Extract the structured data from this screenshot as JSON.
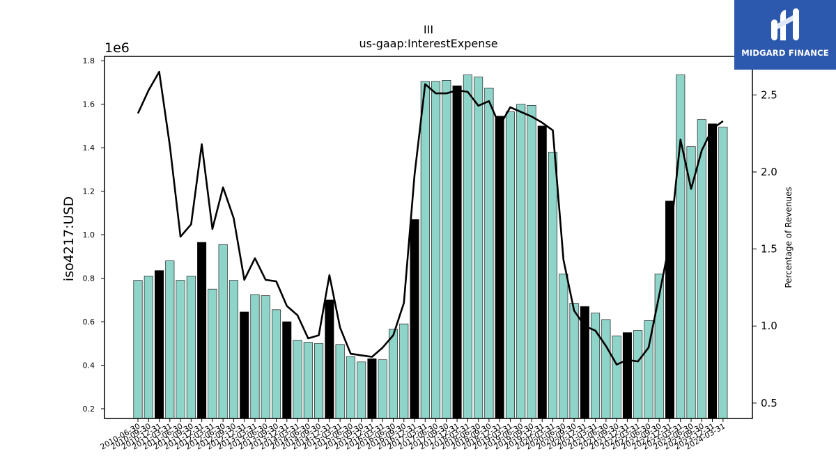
{
  "chart_data": {
    "type": "bar",
    "title": "III",
    "subtitle": "us-gaap:InterestExpense",
    "ylabel": "iso4217:USD",
    "y_offset_label": "1e6",
    "y2label": "Percentage of Revenues",
    "ylim": [
      0.155,
      1.82
    ],
    "y2lim": [
      0.4,
      2.75
    ],
    "yticks": [
      "0.2",
      "0.4",
      "0.6",
      "0.8",
      "1.0",
      "1.2",
      "1.4",
      "1.6",
      "1.8"
    ],
    "y2ticks": [
      "0.5",
      "1.0",
      "1.5",
      "2.0",
      "2.5"
    ],
    "grid": false,
    "categories": [
      "2010-06-30",
      "2010-09-30",
      "2010-12-31",
      "2011-03-31",
      "2011-06-30",
      "2011-09-30",
      "2011-12-31",
      "2012-03-31",
      "2012-06-30",
      "2012-09-30",
      "2012-12-31",
      "2013-03-31",
      "2013-06-30",
      "2013-09-30",
      "2013-12-31",
      "2014-03-31",
      "2014-06-30",
      "2014-09-30",
      "2014-12-31",
      "2015-03-31",
      "2015-06-30",
      "2015-09-30",
      "2015-12-31",
      "2016-03-31",
      "2016-06-30",
      "2016-09-30",
      "2016-12-31",
      "2017-03-31",
      "2017-06-30",
      "2017-09-30",
      "2017-12-31",
      "2018-03-31",
      "2018-06-30",
      "2018-09-30",
      "2018-12-31",
      "2019-03-31",
      "2019-06-30",
      "2019-09-30",
      "2019-12-31",
      "2020-03-31",
      "2020-06-30",
      "2020-09-30",
      "2020-12-31",
      "2021-03-31",
      "2021-06-30",
      "2021-09-30",
      "2021-12-31",
      "2022-03-31",
      "2022-06-30",
      "2022-09-30",
      "2022-12-31",
      "2023-03-31",
      "2023-06-30",
      "2023-09-30",
      "2023-12-31",
      "2024-03-31"
    ],
    "series": [
      {
        "type": "bar",
        "values": [
          0.79,
          0.81,
          0.835,
          0.88,
          0.79,
          0.81,
          0.965,
          0.75,
          0.955,
          0.79,
          0.645,
          0.725,
          0.72,
          0.655,
          0.6,
          0.515,
          0.505,
          0.5,
          0.7,
          0.495,
          0.44,
          0.415,
          0.43,
          0.425,
          0.565,
          0.59,
          1.07,
          1.705,
          1.705,
          1.71,
          1.685,
          1.735,
          1.725,
          1.675,
          1.545,
          1.565,
          1.6,
          1.595,
          1.5,
          1.38,
          0.82,
          0.685,
          0.67,
          0.64,
          0.61,
          0.535,
          0.55,
          0.56,
          0.605,
          0.82,
          1.155,
          1.735,
          1.405,
          1.53,
          1.51,
          1.495
        ],
        "highlight": [
          false,
          false,
          true,
          false,
          false,
          false,
          true,
          false,
          false,
          false,
          true,
          false,
          false,
          false,
          true,
          false,
          false,
          false,
          true,
          false,
          false,
          false,
          true,
          false,
          false,
          false,
          true,
          false,
          false,
          false,
          true,
          false,
          false,
          false,
          true,
          false,
          false,
          false,
          true,
          false,
          false,
          false,
          true,
          false,
          false,
          false,
          true,
          false,
          false,
          false,
          true,
          false,
          false,
          false,
          true,
          false
        ],
        "color": "#8fd4c8",
        "highlight_color": "#000000"
      },
      {
        "type": "line",
        "axis": "right",
        "values": [
          2.38,
          2.53,
          2.65,
          2.17,
          1.58,
          1.66,
          2.18,
          1.63,
          1.9,
          1.7,
          1.3,
          1.44,
          1.3,
          1.29,
          1.13,
          1.07,
          0.92,
          0.94,
          1.33,
          0.99,
          0.82,
          0.81,
          0.8,
          0.86,
          0.94,
          1.15,
          1.98,
          2.57,
          2.51,
          2.51,
          2.53,
          2.52,
          2.43,
          2.46,
          2.3,
          2.42,
          2.39,
          2.36,
          2.32,
          2.27,
          1.43,
          1.1,
          1.0,
          0.97,
          0.87,
          0.75,
          0.78,
          0.77,
          0.86,
          1.2,
          1.55,
          2.21,
          1.89,
          2.14,
          2.28,
          2.33
        ],
        "color": "#000000"
      }
    ]
  },
  "logo": {
    "text": "MIDGARD FINANCE",
    "color": "#2c58ad"
  }
}
